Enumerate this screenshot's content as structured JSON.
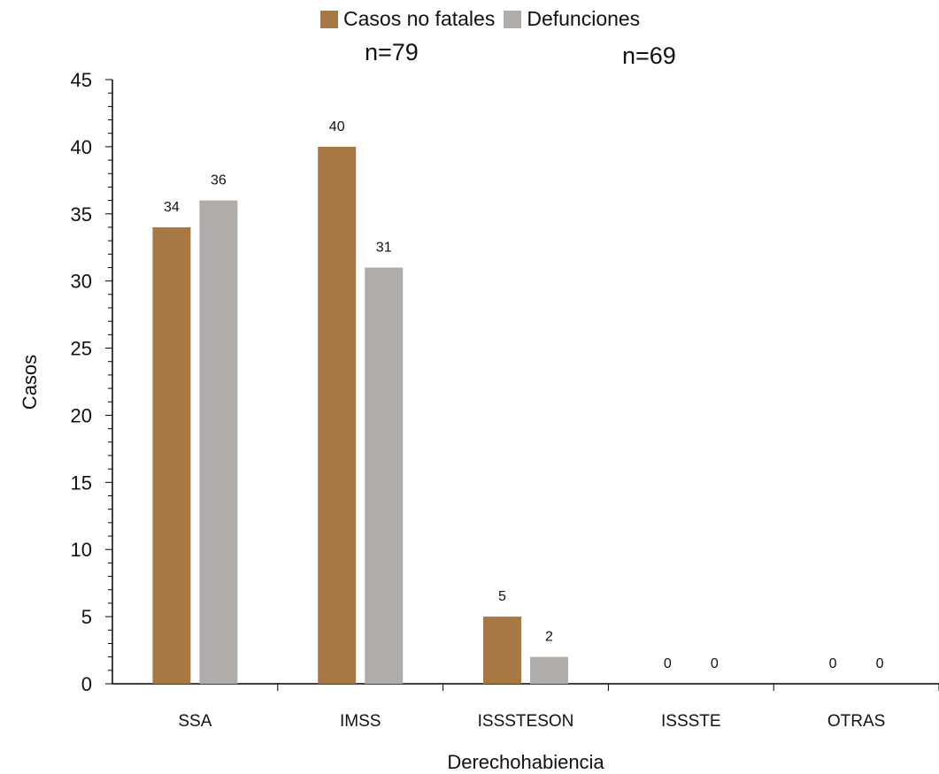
{
  "chart_data": {
    "type": "bar",
    "categories": [
      "SSA",
      "IMSS",
      "ISSSTESON",
      "ISSSTE",
      "OTRAS"
    ],
    "series": [
      {
        "name": "Casos no fatales",
        "color": "#a87844",
        "values": [
          34,
          40,
          5,
          0,
          0
        ]
      },
      {
        "name": "Defunciones",
        "color": "#b0acaa",
        "values": [
          36,
          31,
          2,
          0,
          0
        ]
      }
    ],
    "xlabel": "Derechohabiencia",
    "ylabel": "Casos",
    "ylim": [
      0,
      45
    ],
    "yticks": [
      0,
      5,
      10,
      15,
      20,
      25,
      30,
      35,
      40,
      45
    ],
    "legend_position": "top-center",
    "grid": false,
    "annotations": [
      "n=79",
      "n=69"
    ]
  }
}
